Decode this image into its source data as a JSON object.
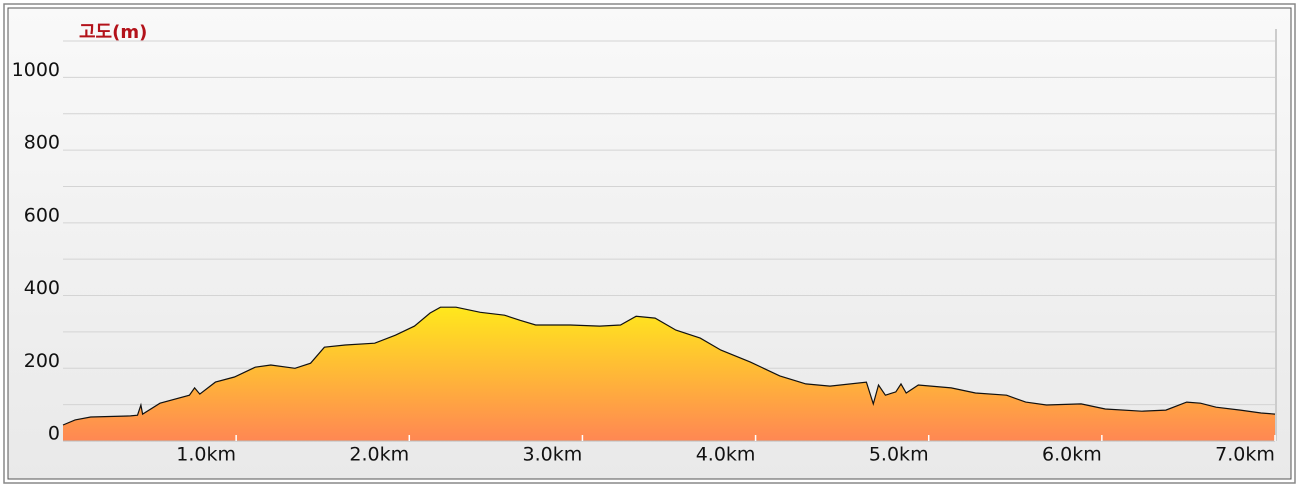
{
  "chart_data": {
    "type": "area",
    "y_axis_label": "고도(m)",
    "x": [
      0,
      0.07,
      0.16,
      0.39,
      0.43,
      0.45,
      0.46,
      0.56,
      0.73,
      0.76,
      0.79,
      0.88,
      0.99,
      1.11,
      1.2,
      1.34,
      1.43,
      1.51,
      1.63,
      1.8,
      1.92,
      2.03,
      2.12,
      2.18,
      2.27,
      2.41,
      2.55,
      2.64,
      2.73,
      2.93,
      3.1,
      3.22,
      3.31,
      3.42,
      3.54,
      3.68,
      3.8,
      3.97,
      4.14,
      4.29,
      4.43,
      4.64,
      4.68,
      4.71,
      4.75,
      4.81,
      4.84,
      4.87,
      4.94,
      5.13,
      5.27,
      5.45,
      5.56,
      5.68,
      5.88,
      6.02,
      6.23,
      6.37,
      6.49,
      6.57,
      6.66,
      6.8,
      6.92,
      7.0
    ],
    "values": [
      44,
      58,
      66,
      69,
      71,
      99,
      74,
      104,
      126,
      146,
      129,
      162,
      176,
      203,
      209,
      200,
      214,
      258,
      264,
      269,
      291,
      316,
      352,
      368,
      368,
      354,
      346,
      332,
      319,
      319,
      316,
      319,
      343,
      338,
      305,
      283,
      250,
      217,
      179,
      157,
      151,
      162,
      102,
      154,
      126,
      135,
      157,
      132,
      154,
      146,
      132,
      126,
      107,
      99,
      102,
      88,
      82,
      85,
      107,
      104,
      93,
      85,
      77,
      74
    ],
    "color_top": "#ffe81c",
    "color_bottom": "#ff8753",
    "line_color": "#111111",
    "xlim": [
      0,
      7.0
    ],
    "xticks": [
      {
        "value": 1,
        "label": "1.0km"
      },
      {
        "value": 2,
        "label": "2.0km"
      },
      {
        "value": 3,
        "label": "3.0km"
      },
      {
        "value": 4,
        "label": "4.0km"
      },
      {
        "value": 5,
        "label": "5.0km"
      },
      {
        "value": 6,
        "label": "6.0km"
      },
      {
        "value": 7,
        "label": "7.0km"
      }
    ],
    "ylim": [
      0,
      1100
    ],
    "yticks": [
      0,
      200,
      400,
      600,
      800,
      1000
    ],
    "grid": true
  }
}
